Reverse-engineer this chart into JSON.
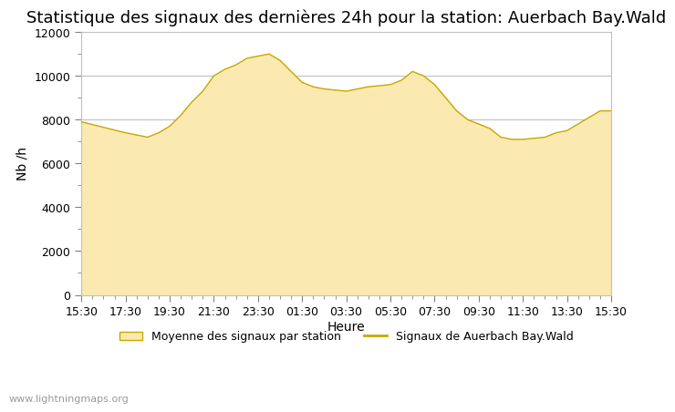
{
  "title": "Statistique des signaux des dernières 24h pour la station: Auerbach Bay.Wald",
  "xlabel": "Heure",
  "ylabel": "Nb /h",
  "ylim": [
    0,
    12000
  ],
  "yticks": [
    0,
    2000,
    4000,
    6000,
    8000,
    10000,
    12000
  ],
  "fill_color": "#FAE9B0",
  "line_color": "#C8A800",
  "background_color": "#ffffff",
  "watermark": "www.lightningmaps.org",
  "legend_fill_label": "Moyenne des signaux par station",
  "legend_line_label": "Signaux de Auerbach Bay.Wald",
  "x_labels": [
    "15:30",
    "17:30",
    "19:30",
    "21:30",
    "23:30",
    "01:30",
    "03:30",
    "05:30",
    "07:30",
    "09:30",
    "11:30",
    "13:30",
    "15:30"
  ],
  "time_points": [
    0,
    0.5,
    1,
    1.25,
    1.5,
    1.75,
    2,
    2.25,
    2.5,
    2.75,
    3,
    3.25,
    3.5,
    3.75,
    4,
    4.25,
    4.5,
    4.75,
    5,
    5.25,
    5.5,
    5.75,
    6,
    6.25,
    6.5,
    6.75,
    7,
    7.25,
    7.5,
    7.75,
    8,
    8.25,
    8.5,
    8.75,
    9,
    9.25,
    9.5,
    9.75,
    10,
    10.25,
    10.5,
    10.75,
    11,
    11.25,
    11.5,
    11.75,
    12
  ],
  "values": [
    7900,
    7650,
    7400,
    7300,
    7200,
    7400,
    7700,
    8200,
    8800,
    9300,
    10000,
    10300,
    10500,
    10800,
    10900,
    11000,
    10700,
    10200,
    9700,
    9500,
    9400,
    9350,
    9300,
    9400,
    9500,
    9550,
    9600,
    9800,
    10200,
    10000,
    9600,
    9000,
    8400,
    8000,
    7800,
    7600,
    7200,
    7100,
    7100,
    7150,
    7200,
    7400,
    7500,
    7800,
    8100,
    8400,
    8400
  ],
  "title_fontsize": 13,
  "axis_fontsize": 10,
  "tick_fontsize": 9,
  "legend_fontsize": 9,
  "watermark_fontsize": 8
}
